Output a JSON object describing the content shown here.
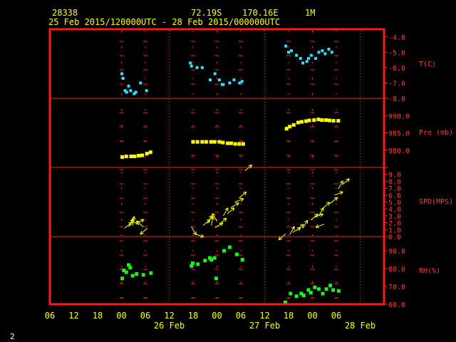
{
  "header": {
    "station": "28338",
    "lat": "72.19S",
    "lon": "170.16E",
    "interval": "1M",
    "range": "25 Feb 2015/120000UTC - 28 Feb 2015/000000UTC"
  },
  "page_number": "2",
  "colors": {
    "frame": "#ff1a1a",
    "grid": "#ff2020",
    "axis_text": "#ff3b30",
    "header_text": "#ffff00",
    "temp": "#33e0ff",
    "pressure": "#ffff00",
    "wind": "#ffff00",
    "rh": "#22ee22"
  },
  "x_axis": {
    "tick_labels": [
      "06",
      "12",
      "18",
      "00",
      "06",
      "12",
      "18",
      "00",
      "06",
      "12",
      "18",
      "00",
      "06"
    ],
    "date_labels": [
      "26 Feb",
      "27 Feb",
      "28 Feb"
    ],
    "date_label_positions_hours": [
      24,
      48,
      72
    ],
    "range_hours": [
      -6,
      78
    ]
  },
  "chart_data": [
    {
      "type": "scatter",
      "panel": "temperature",
      "ylabel": "T(C)",
      "ylim": [
        -8.0,
        -3.5
      ],
      "ticks": [
        -4.0,
        -5.0,
        -6.0,
        -7.0,
        -8.0
      ],
      "tick_labels": [
        "-4.0",
        "-5.0",
        "-6.0",
        "-7.0",
        "-8.0"
      ],
      "x": [
        12.1,
        12.4,
        12.9,
        13.3,
        13.8,
        14.3,
        15.2,
        15.6,
        16.8,
        18.3,
        29.3,
        29.6,
        31.0,
        32.3,
        34.3,
        35.5,
        36.6,
        37.3,
        37.6,
        39.2,
        40.3,
        41.7,
        42.3,
        53.3,
        54.0,
        54.7,
        56.0,
        57.0,
        57.6,
        58.6,
        59.0,
        59.7,
        60.8,
        61.6,
        62.5,
        63.2,
        64.1,
        64.9
      ],
      "y": [
        -6.4,
        -6.7,
        -7.5,
        -7.6,
        -7.2,
        -7.5,
        -7.7,
        -7.6,
        -7.0,
        -7.5,
        -5.7,
        -5.9,
        -6.0,
        -6.0,
        -6.8,
        -6.4,
        -6.8,
        -7.1,
        -7.1,
        -7.0,
        -6.8,
        -7.0,
        -6.9,
        -4.6,
        -5.0,
        -4.9,
        -5.2,
        -5.4,
        -5.7,
        -5.6,
        -5.4,
        -5.2,
        -5.4,
        -5.0,
        -4.9,
        -5.1,
        -4.8,
        -5.0
      ]
    },
    {
      "type": "scatter",
      "panel": "pressure",
      "ylabel": "Pre (mb)",
      "ylim": [
        975.0,
        995.0
      ],
      "ticks": [
        990.0,
        985.0,
        980.0
      ],
      "tick_labels": [
        "990.0",
        "985.0",
        "980.0"
      ],
      "x": [
        12.2,
        13.2,
        14.4,
        15.3,
        16.3,
        17.2,
        18.4,
        19.3,
        30.0,
        31.1,
        32.3,
        33.3,
        34.5,
        35.4,
        36.6,
        37.5,
        38.7,
        39.6,
        40.6,
        41.6,
        42.6,
        53.5,
        54.3,
        55.3,
        56.4,
        57.3,
        58.4,
        59.2,
        60.4,
        61.5,
        62.4,
        63.4,
        64.3,
        65.3,
        66.5
      ],
      "y": [
        978.0,
        978.2,
        978.2,
        978.2,
        978.4,
        978.5,
        979.0,
        979.4,
        982.4,
        982.4,
        982.4,
        982.4,
        982.4,
        982.4,
        982.4,
        982.2,
        982.0,
        982.0,
        981.8,
        981.8,
        981.8,
        986.2,
        986.8,
        987.3,
        988.0,
        988.2,
        988.4,
        988.6,
        988.7,
        988.9,
        988.7,
        988.7,
        988.6,
        988.5,
        988.5
      ]
    },
    {
      "type": "scatter",
      "panel": "wind",
      "ylabel": "SPD(MPS)",
      "ylim": [
        0.0,
        10.0
      ],
      "ticks": [
        0.0,
        1.0,
        2.0,
        3.0,
        4.0,
        5.0,
        6.0,
        7.0,
        8.0,
        9.0
      ],
      "tick_labels": [
        "0.0",
        "1.0",
        "2.0",
        "3.0",
        "4.0",
        "5.0",
        "6.0",
        "7.0",
        "8.0",
        "9.0"
      ],
      "glyph": "arrow",
      "x": [
        12.8,
        13.8,
        14.8,
        15.6,
        16.4,
        17.5,
        18.5,
        29.6,
        30.5,
        32.5,
        33.6,
        34.6,
        35.5,
        36.0,
        36.6,
        37.6,
        38.6,
        39.5,
        40.5,
        41.6,
        43.0,
        53.3,
        54.3,
        55.0,
        56.0,
        57.6,
        59.6,
        60.5,
        61.6,
        62.6,
        63.0,
        64.5,
        65.5,
        66.5,
        67.5
      ],
      "y": [
        1.2,
        1.4,
        1.6,
        1.8,
        1.7,
        1.4,
        1.2,
        1.4,
        0.4,
        1.6,
        1.9,
        1.6,
        1.3,
        2.2,
        1.8,
        3.0,
        3.3,
        4.2,
        5.0,
        5.6,
        9.5,
        0.4,
        0.3,
        0.6,
        0.9,
        1.2,
        2.4,
        2.8,
        3.0,
        4.1,
        1.8,
        4.8,
        6.0,
        6.9,
        7.5
      ],
      "dir_deg": [
        40,
        60,
        80,
        30,
        150,
        140,
        220,
        300,
        340,
        40,
        60,
        80,
        30,
        120,
        40,
        60,
        40,
        30,
        20,
        40,
        40,
        220,
        60,
        30,
        40,
        60,
        40,
        20,
        60,
        40,
        200,
        40,
        20,
        60,
        40
      ]
    },
    {
      "type": "scatter",
      "panel": "rh",
      "ylabel": "RH(%)",
      "ylim": [
        60.0,
        98.0
      ],
      "ticks": [
        90.0,
        80.0,
        70.0,
        60.0
      ],
      "tick_labels": [
        "90.0",
        "80.0",
        "70.0",
        "60.0"
      ],
      "x": [
        12.2,
        12.6,
        13.2,
        13.8,
        14.2,
        14.8,
        15.8,
        17.5,
        19.4,
        29.6,
        29.9,
        31.2,
        33.0,
        34.2,
        34.6,
        35.4,
        35.8,
        37.8,
        39.2,
        41.0,
        42.4,
        53.2,
        54.5,
        56.0,
        57.2,
        57.8,
        59.0,
        59.6,
        60.6,
        61.6,
        62.6,
        63.5,
        64.5,
        65.2,
        66.6
      ],
      "y": [
        74.5,
        79.0,
        78.0,
        82.0,
        80.5,
        76.0,
        77.0,
        76.5,
        77.5,
        81.5,
        83.0,
        82.5,
        84.5,
        86.0,
        85.0,
        86.0,
        74.5,
        90.0,
        92.0,
        88.0,
        85.0,
        61.0,
        66.0,
        64.5,
        66.0,
        65.0,
        68.0,
        66.5,
        69.5,
        68.5,
        66.0,
        68.5,
        70.5,
        68.0,
        67.5
      ]
    }
  ]
}
